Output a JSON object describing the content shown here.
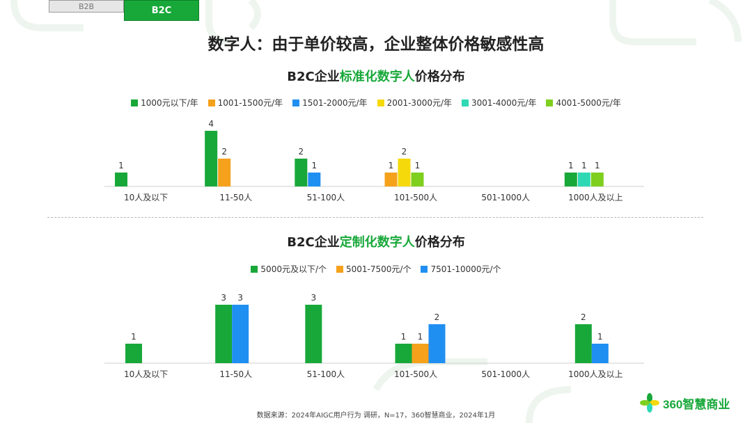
{
  "tabs": {
    "b2b": "B2B",
    "b2c": "B2C"
  },
  "main_title": "数字人：由于单价较高，企业整体价格敏感性高",
  "source": "数据来源：2024年AIGC用户行为 调研，N=17，360智慧商业，2024年1月",
  "logo": {
    "text": "360智慧商业"
  },
  "colors": {
    "accent": "#18a83a"
  },
  "chart_data": [
    {
      "type": "bar",
      "title_prefix": "B2C企业",
      "title_highlight": "标准化数字人",
      "title_suffix": "价格分布",
      "categories": [
        "10人及以下",
        "11-50人",
        "51-100人",
        "101-500人",
        "501-1000人",
        "1000人及以上"
      ],
      "series": [
        {
          "name": "1000元以下/年",
          "color": "#18a83a",
          "values": [
            1,
            4,
            2,
            null,
            null,
            1
          ]
        },
        {
          "name": "1001-1500元/年",
          "color": "#f5a11c",
          "values": [
            null,
            2,
            null,
            1,
            null,
            null
          ]
        },
        {
          "name": "1501-2000元/年",
          "color": "#1f8ff2",
          "values": [
            null,
            null,
            1,
            null,
            null,
            null
          ]
        },
        {
          "name": "2001-3000元/年",
          "color": "#f5d90a",
          "values": [
            null,
            null,
            null,
            2,
            null,
            null
          ]
        },
        {
          "name": "3001-4000元/年",
          "color": "#2ed9b4",
          "values": [
            null,
            null,
            null,
            null,
            null,
            1
          ]
        },
        {
          "name": "4001-5000元/年",
          "color": "#7fcf1e",
          "values": [
            null,
            null,
            null,
            1,
            null,
            1
          ]
        }
      ],
      "ylim": [
        0,
        4
      ],
      "grid": false,
      "legend_position": "top"
    },
    {
      "type": "bar",
      "title_prefix": "B2C企业",
      "title_highlight": "定制化数字人",
      "title_suffix": "价格分布",
      "categories": [
        "10人及以下",
        "11-50人",
        "51-100人",
        "101-500人",
        "501-1000人",
        "1000人及以上"
      ],
      "series": [
        {
          "name": "5000元及以下/个",
          "color": "#18a83a",
          "values": [
            1,
            3,
            3,
            1,
            null,
            2
          ]
        },
        {
          "name": "5001-7500元/个",
          "color": "#f5a11c",
          "values": [
            null,
            null,
            null,
            1,
            null,
            null
          ]
        },
        {
          "name": "7501-10000元/个",
          "color": "#1f8ff2",
          "values": [
            null,
            3,
            null,
            2,
            null,
            1
          ]
        }
      ],
      "ylim": [
        0,
        3
      ],
      "grid": false,
      "legend_position": "top"
    }
  ]
}
